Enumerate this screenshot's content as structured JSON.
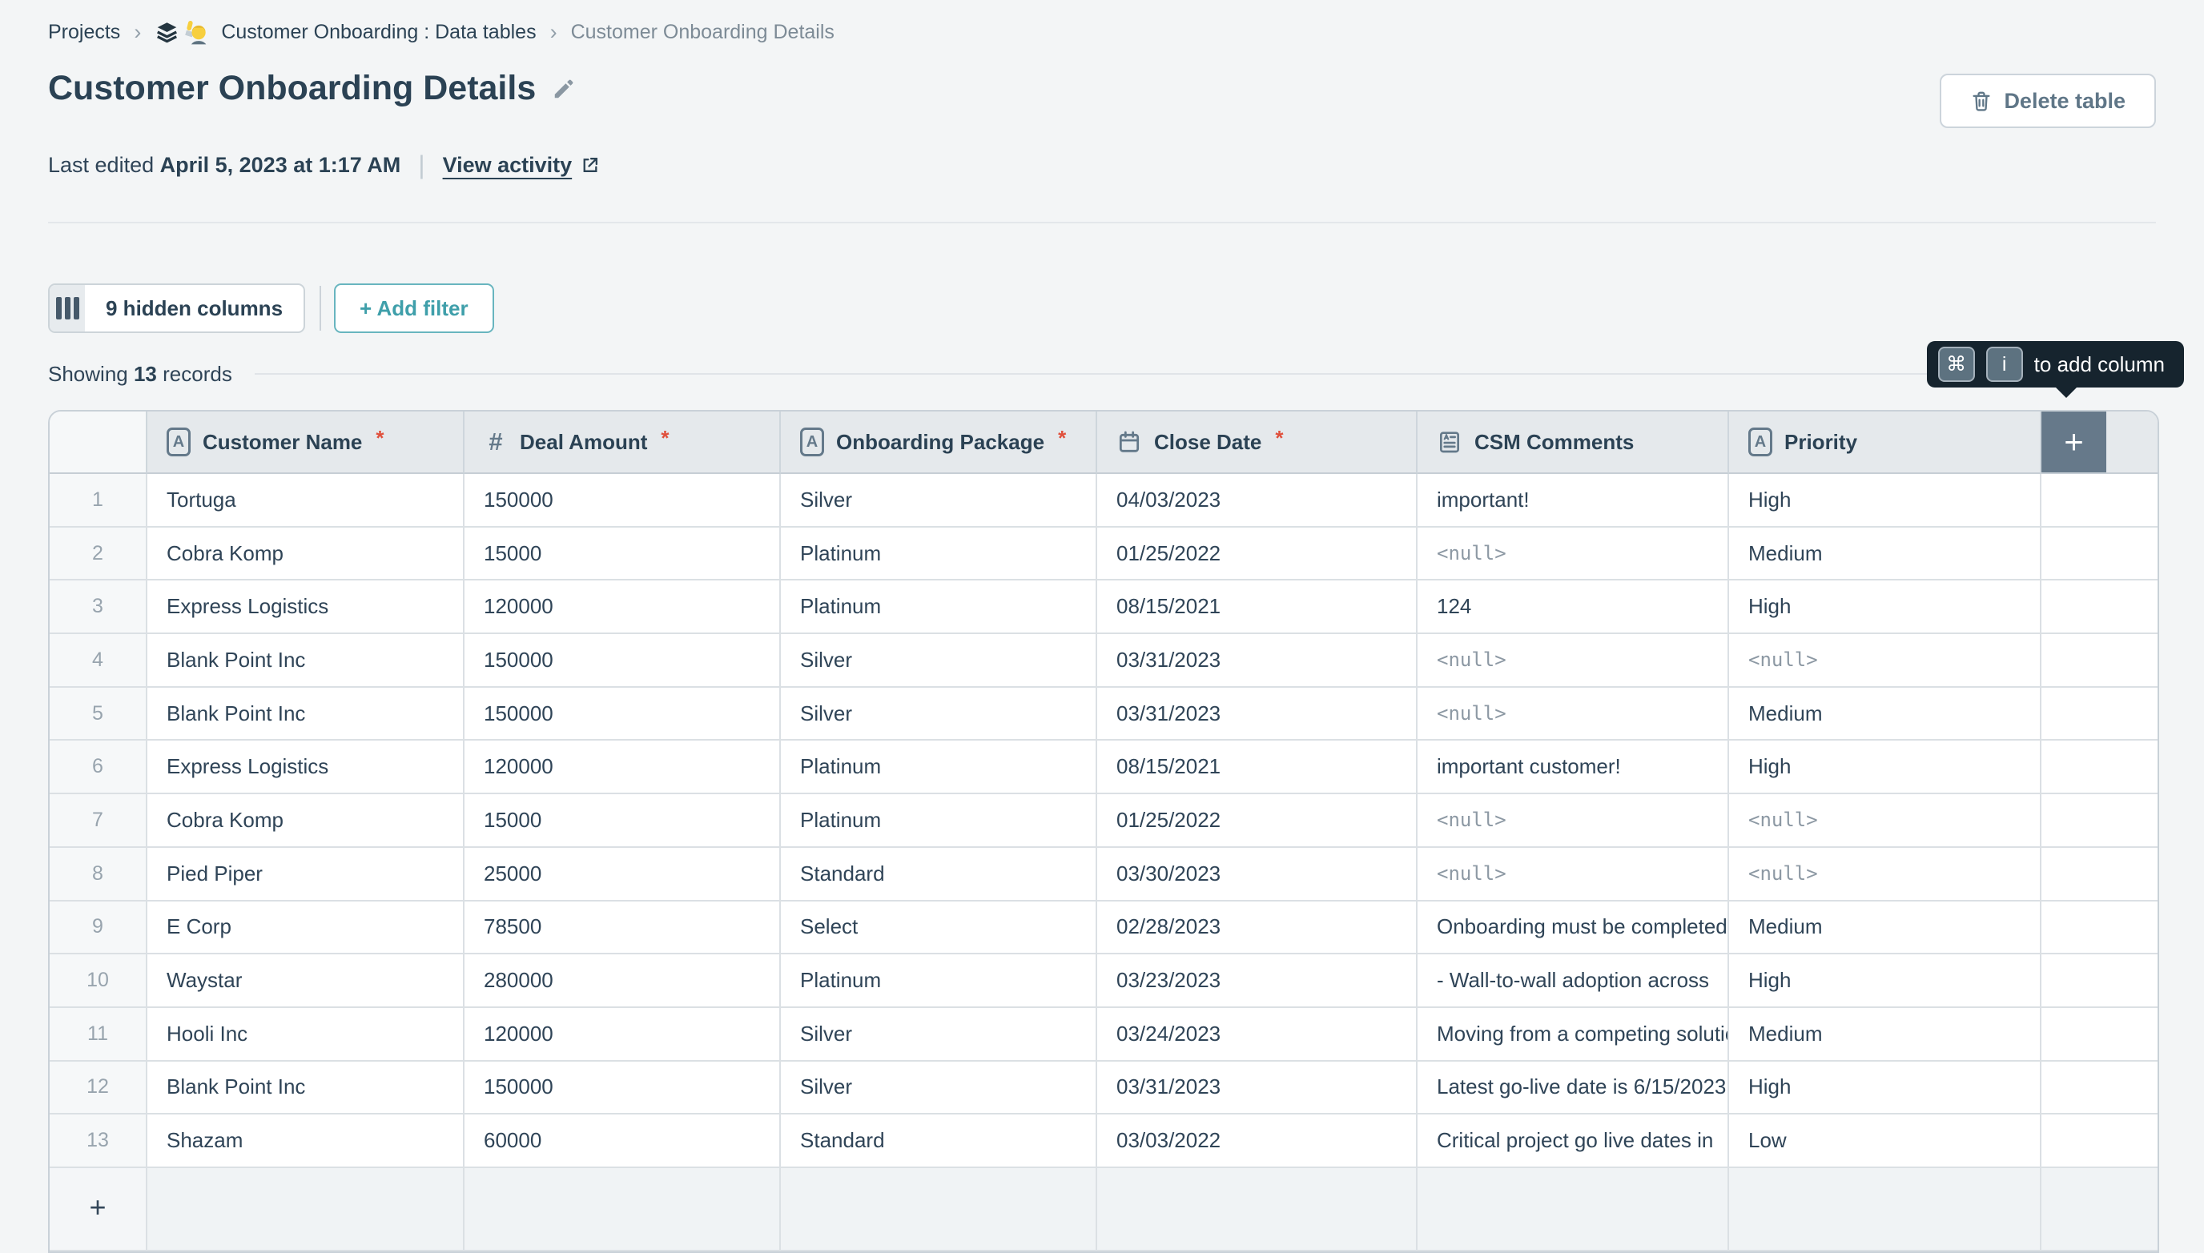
{
  "breadcrumb": {
    "separator": "›",
    "items": [
      {
        "label": "Projects"
      },
      {
        "label": "Customer Onboarding : Data tables"
      },
      {
        "label": "Customer Onboarding Details"
      }
    ]
  },
  "header": {
    "title": "Customer Onboarding Details",
    "last_edited_prefix": "Last edited",
    "last_edited_value": "April 5, 2023 at 1:17 AM",
    "view_activity_label": "View activity",
    "delete_table_label": "Delete table"
  },
  "toolbar": {
    "hidden_columns_label": "9 hidden columns",
    "add_filter_label": "+ Add filter"
  },
  "status": {
    "showing_prefix": "Showing",
    "record_count": "13",
    "showing_suffix": "records"
  },
  "tooltip": {
    "keys": [
      "⌘",
      "i"
    ],
    "label": "to add column"
  },
  "table": {
    "null_text": "<null>",
    "add_column_label": "+",
    "add_row_label": "+",
    "columns": [
      {
        "label": "Customer Name",
        "type_icon": "text-field-icon",
        "required": true
      },
      {
        "label": "Deal Amount",
        "type_icon": "number-field-icon",
        "required": true
      },
      {
        "label": "Onboarding Package",
        "type_icon": "text-field-icon",
        "required": true
      },
      {
        "label": "Close Date",
        "type_icon": "calendar-icon",
        "required": true
      },
      {
        "label": "CSM Comments",
        "type_icon": "long-text-icon",
        "required": false
      },
      {
        "label": "Priority",
        "type_icon": "text-field-icon",
        "required": false
      }
    ],
    "rows": [
      {
        "num": "1",
        "cells": [
          "Tortuga",
          "150000",
          "Silver",
          "04/03/2023",
          "important!",
          "High"
        ]
      },
      {
        "num": "2",
        "cells": [
          "Cobra Komp",
          "15000",
          "Platinum",
          "01/25/2022",
          "<null>",
          "Medium"
        ]
      },
      {
        "num": "3",
        "cells": [
          "Express Logistics",
          "120000",
          "Platinum",
          "08/15/2021",
          "124",
          "High"
        ]
      },
      {
        "num": "4",
        "cells": [
          "Blank Point Inc",
          "150000",
          "Silver",
          "03/31/2023",
          "<null>",
          "<null>"
        ]
      },
      {
        "num": "5",
        "cells": [
          "Blank Point Inc",
          "150000",
          "Silver",
          "03/31/2023",
          "<null>",
          "Medium"
        ]
      },
      {
        "num": "6",
        "cells": [
          "Express Logistics",
          "120000",
          "Platinum",
          "08/15/2021",
          "important customer!",
          "High"
        ]
      },
      {
        "num": "7",
        "cells": [
          "Cobra Komp",
          "15000",
          "Platinum",
          "01/25/2022",
          "<null>",
          "<null>"
        ]
      },
      {
        "num": "8",
        "cells": [
          "Pied Piper",
          "25000",
          "Standard",
          "03/30/2023",
          "<null>",
          "<null>"
        ]
      },
      {
        "num": "9",
        "cells": [
          "E Corp",
          "78500",
          "Select",
          "02/28/2023",
          "Onboarding must be completed",
          "Medium"
        ]
      },
      {
        "num": "10",
        "cells": [
          "Waystar",
          "280000",
          "Platinum",
          "03/23/2023",
          "- Wall-to-wall adoption across",
          "High"
        ]
      },
      {
        "num": "11",
        "cells": [
          "Hooli Inc",
          "120000",
          "Silver",
          "03/24/2023",
          "Moving from a competing solution",
          "Medium"
        ]
      },
      {
        "num": "12",
        "cells": [
          "Blank Point Inc",
          "150000",
          "Silver",
          "03/31/2023",
          "Latest go-live date is 6/15/2023",
          "High"
        ]
      },
      {
        "num": "13",
        "cells": [
          "Shazam",
          "60000",
          "Standard",
          "03/03/2022",
          "Critical project go live dates in",
          "Low"
        ]
      }
    ]
  },
  "colors": {
    "accent_teal": "#3f9faa",
    "required_red": "#e0503c",
    "tooltip_bg": "#16242e",
    "header_bg": "#e5e9ec",
    "add_column_bg": "#66798a",
    "text_dark": "#2b4254"
  }
}
